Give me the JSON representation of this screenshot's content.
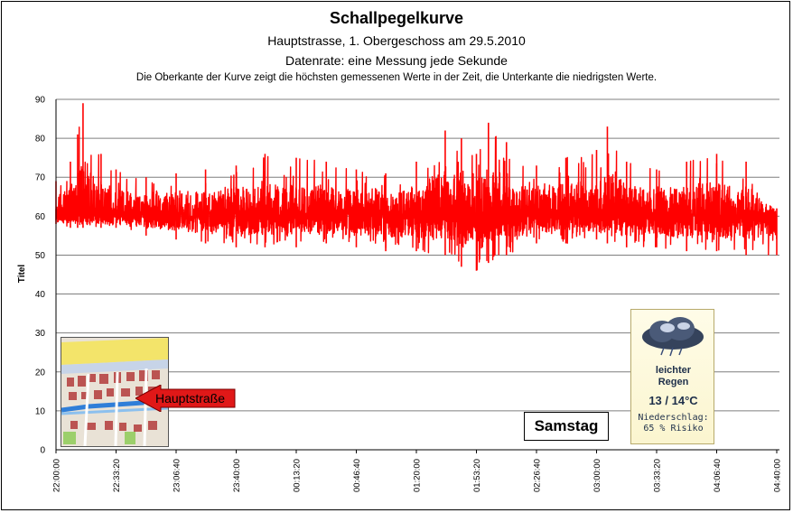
{
  "chart_data": {
    "type": "line",
    "title": "Schallpegelkurve",
    "subtitle_lines": [
      "Hauptstrasse, 1. Obergeschoss am 29.5.2010",
      "Datenrate: eine Messung jede Sekunde",
      "Die Oberkante der Kurve zeigt die höchsten  gemessenen Werte  in der Zeit, die Unterkante  die niedrigsten Werte."
    ],
    "ylabel": "Titel",
    "xlabel": "",
    "ylim": [
      0,
      90
    ],
    "yticks": [
      "0",
      "10",
      "20",
      "30",
      "40",
      "50",
      "60",
      "70",
      "80",
      "90"
    ],
    "xtick_labels": [
      "22:00:00",
      "22:33:20",
      "23:06:40",
      "23:40:00",
      "00:13:20",
      "00:46:40",
      "01:20:00",
      "01:53:20",
      "02:26:40",
      "03:00:00",
      "03:33:20",
      "04:06:40",
      "04:40:00"
    ],
    "grid": true,
    "series": [
      {
        "color": "#ff0000",
        "envelope_points": [
          {
            "t": "22:00:00",
            "min": 58,
            "max": 69
          },
          {
            "t": "22:08:00",
            "min": 57,
            "max": 74
          },
          {
            "t": "22:12:00",
            "min": 57,
            "max": 81
          },
          {
            "t": "22:15:00",
            "min": 57,
            "max": 89
          },
          {
            "t": "22:25:00",
            "min": 57,
            "max": 76
          },
          {
            "t": "22:33:20",
            "min": 57,
            "max": 72
          },
          {
            "t": "22:50:00",
            "min": 55,
            "max": 70
          },
          {
            "t": "23:06:40",
            "min": 54,
            "max": 71
          },
          {
            "t": "23:23:00",
            "min": 53,
            "max": 72
          },
          {
            "t": "23:40:00",
            "min": 52,
            "max": 73
          },
          {
            "t": "23:56:00",
            "min": 52,
            "max": 76
          },
          {
            "t": "00:13:20",
            "min": 52,
            "max": 75
          },
          {
            "t": "00:30:00",
            "min": 53,
            "max": 74
          },
          {
            "t": "00:46:40",
            "min": 52,
            "max": 72
          },
          {
            "t": "01:03:00",
            "min": 51,
            "max": 71
          },
          {
            "t": "01:20:00",
            "min": 51,
            "max": 74
          },
          {
            "t": "01:36:00",
            "min": 50,
            "max": 82
          },
          {
            "t": "01:45:00",
            "min": 47,
            "max": 80
          },
          {
            "t": "01:53:20",
            "min": 46,
            "max": 76
          },
          {
            "t": "02:00:00",
            "min": 48,
            "max": 84
          },
          {
            "t": "02:10:00",
            "min": 50,
            "max": 79
          },
          {
            "t": "02:26:40",
            "min": 53,
            "max": 73
          },
          {
            "t": "02:43:00",
            "min": 53,
            "max": 75
          },
          {
            "t": "03:00:00",
            "min": 54,
            "max": 77
          },
          {
            "t": "03:06:00",
            "min": 53,
            "max": 83
          },
          {
            "t": "03:16:40",
            "min": 52,
            "max": 74
          },
          {
            "t": "03:33:20",
            "min": 52,
            "max": 72
          },
          {
            "t": "03:50:00",
            "min": 51,
            "max": 74
          },
          {
            "t": "04:06:40",
            "min": 51,
            "max": 76
          },
          {
            "t": "04:23:00",
            "min": 50,
            "max": 74
          },
          {
            "t": "04:40:00",
            "min": 50,
            "max": 62
          }
        ]
      }
    ]
  },
  "map": {
    "callout_label": "Hauptstraße"
  },
  "day_label": "Samstag",
  "weather": {
    "icon": "rain-cloud-icon",
    "condition_line1": "leichter",
    "condition_line2": "Regen",
    "temperature": "13 / 14°C",
    "precip_label": "Niederschlag:",
    "precip_value": "65 % Risiko"
  }
}
